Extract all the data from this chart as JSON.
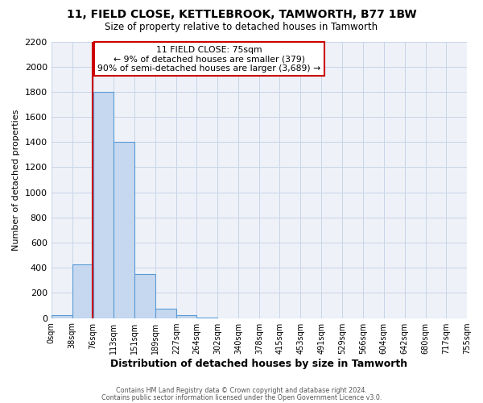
{
  "title": "11, FIELD CLOSE, KETTLEBROOK, TAMWORTH, B77 1BW",
  "subtitle": "Size of property relative to detached houses in Tamworth",
  "xlabel": "Distribution of detached houses by size in Tamworth",
  "ylabel": "Number of detached properties",
  "bin_edges": [
    0,
    38,
    76,
    113,
    151,
    189,
    227,
    264,
    302,
    340,
    378,
    415,
    453,
    491,
    529,
    566,
    604,
    642,
    680,
    717,
    755
  ],
  "bar_heights": [
    20,
    425,
    1800,
    1400,
    350,
    75,
    25,
    5,
    0,
    0,
    0,
    0,
    0,
    0,
    0,
    0,
    0,
    0,
    0,
    0
  ],
  "bar_color": "#c5d8f0",
  "bar_edge_color": "#5b9bd5",
  "property_size": 75,
  "red_line_color": "#cc0000",
  "ylim": [
    0,
    2200
  ],
  "yticks": [
    0,
    200,
    400,
    600,
    800,
    1000,
    1200,
    1400,
    1600,
    1800,
    2000,
    2200
  ],
  "annotation_line1": "11 FIELD CLOSE: 75sqm",
  "annotation_line2": "← 9% of detached houses are smaller (379)",
  "annotation_line3": "90% of semi-detached houses are larger (3,689) →",
  "annotation_box_color": "#cc0000",
  "annotation_bg": "#ffffff",
  "footer1": "Contains HM Land Registry data © Crown copyright and database right 2024.",
  "footer2": "Contains public sector information licensed under the Open Government Licence v3.0.",
  "tick_labels": [
    "0sqm",
    "38sqm",
    "76sqm",
    "113sqm",
    "151sqm",
    "189sqm",
    "227sqm",
    "264sqm",
    "302sqm",
    "340sqm",
    "378sqm",
    "415sqm",
    "453sqm",
    "491sqm",
    "529sqm",
    "566sqm",
    "604sqm",
    "642sqm",
    "680sqm",
    "717sqm",
    "755sqm"
  ],
  "grid_color": "#c8d4e8",
  "background_color": "#ffffff",
  "plot_bg_color": "#eef2f8"
}
